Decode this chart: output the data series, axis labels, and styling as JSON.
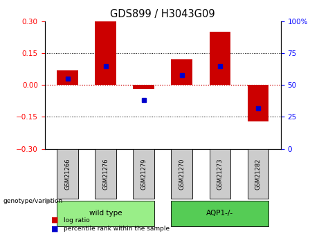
{
  "title": "GDS899 / H3043G09",
  "samples": [
    "GSM21266",
    "GSM21276",
    "GSM21279",
    "GSM21270",
    "GSM21273",
    "GSM21282"
  ],
  "log_ratios": [
    0.07,
    0.3,
    -0.02,
    0.12,
    0.25,
    -0.17
  ],
  "percentile_ranks": [
    55,
    65,
    38,
    58,
    65,
    32
  ],
  "ylim": [
    -0.3,
    0.3
  ],
  "yticks": [
    -0.3,
    -0.15,
    0,
    0.15,
    0.3
  ],
  "y2lim": [
    0,
    100
  ],
  "y2ticks": [
    0,
    25,
    50,
    75,
    100
  ],
  "hlines": [
    0.15,
    -0.15
  ],
  "bar_color": "#cc0000",
  "percentile_color": "#0000cc",
  "zero_line_color": "#cc0000",
  "groups": [
    {
      "label": "wild type",
      "indices": [
        0,
        1,
        2
      ],
      "color": "#99ee88"
    },
    {
      "label": "AQP1-/-",
      "indices": [
        3,
        4,
        5
      ],
      "color": "#55cc55"
    }
  ],
  "genotype_label": "genotype/variation",
  "legend_logratio": "log ratio",
  "legend_percentile": "percentile rank within the sample",
  "bar_width": 0.55,
  "tick_fontsize": 7.5,
  "title_fontsize": 10.5,
  "sample_box_color": "#cccccc",
  "spine_color": "#000000"
}
